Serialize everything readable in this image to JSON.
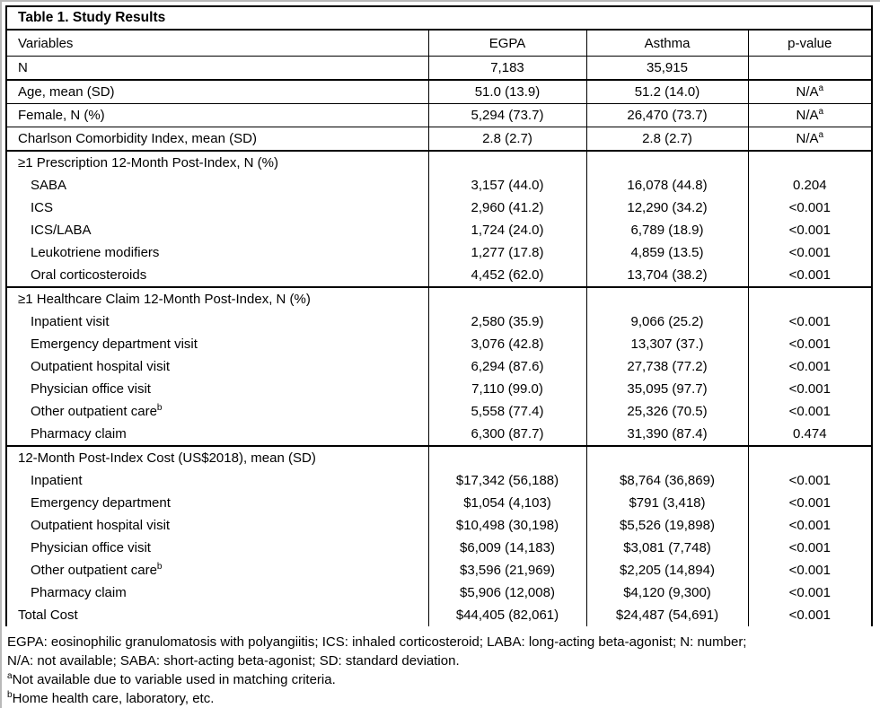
{
  "table": {
    "title": "Table 1. Study Results",
    "columns": {
      "variables": "Variables",
      "egpa": "EGPA",
      "asthma": "Asthma",
      "pvalue": "p-value"
    },
    "rows": [
      {
        "label": "N",
        "egpa": "7,183",
        "asthma": "35,915",
        "p": ""
      },
      {
        "label": "Age, mean (SD)",
        "egpa": "51.0 (13.9)",
        "asthma": "51.2 (14.0)",
        "p": "N/A^{a}"
      },
      {
        "label": "Female, N (%)",
        "egpa": "5,294 (73.7)",
        "asthma": "26,470 (73.7)",
        "p": "N/A^{a}"
      },
      {
        "label": "Charlson Comorbidity Index, mean (SD)",
        "egpa": "2.8 (2.7)",
        "asthma": "2.8 (2.7)",
        "p": "N/A^{a}"
      },
      {
        "label": "≥1 Prescription 12-Month Post-Index, N (%)",
        "egpa": "",
        "asthma": "",
        "p": ""
      },
      {
        "label": "SABA",
        "egpa": "3,157 (44.0)",
        "asthma": "16,078 (44.8)",
        "p": "0.204"
      },
      {
        "label": "ICS",
        "egpa": "2,960 (41.2)",
        "asthma": "12,290 (34.2)",
        "p": "<0.001"
      },
      {
        "label": "ICS/LABA",
        "egpa": "1,724 (24.0)",
        "asthma": "6,789 (18.9)",
        "p": "<0.001"
      },
      {
        "label": "Leukotriene modifiers",
        "egpa": "1,277 (17.8)",
        "asthma": "4,859 (13.5)",
        "p": "<0.001"
      },
      {
        "label": "Oral corticosteroids",
        "egpa": "4,452 (62.0)",
        "asthma": "13,704 (38.2)",
        "p": "<0.001"
      },
      {
        "label": "≥1 Healthcare Claim 12-Month Post-Index, N (%)",
        "egpa": "",
        "asthma": "",
        "p": ""
      },
      {
        "label": "Inpatient visit",
        "egpa": "2,580 (35.9)",
        "asthma": "9,066 (25.2)",
        "p": "<0.001"
      },
      {
        "label": "Emergency department visit",
        "egpa": "3,076 (42.8)",
        "asthma": "13,307 (37.)",
        "p": "<0.001"
      },
      {
        "label": "Outpatient hospital visit",
        "egpa": "6,294 (87.6)",
        "asthma": "27,738 (77.2)",
        "p": "<0.001"
      },
      {
        "label": "Physician office visit",
        "egpa": "7,110 (99.0)",
        "asthma": "35,095 (97.7)",
        "p": "<0.001"
      },
      {
        "label": "Other outpatient care^{b}",
        "egpa": "5,558 (77.4)",
        "asthma": "25,326 (70.5)",
        "p": "<0.001"
      },
      {
        "label": "Pharmacy claim",
        "egpa": "6,300 (87.7)",
        "asthma": "31,390 (87.4)",
        "p": "0.474"
      },
      {
        "label": "12-Month Post-Index Cost (US$2018), mean (SD)",
        "egpa": "",
        "asthma": "",
        "p": ""
      },
      {
        "label": "Inpatient",
        "egpa": "$17,342 (56,188)",
        "asthma": "$8,764 (36,869)",
        "p": "<0.001"
      },
      {
        "label": "Emergency department",
        "egpa": "$1,054 (4,103)",
        "asthma": "$791 (3,418)",
        "p": "<0.001"
      },
      {
        "label": "Outpatient hospital visit",
        "egpa": "$10,498 (30,198)",
        "asthma": "$5,526 (19,898)",
        "p": "<0.001"
      },
      {
        "label": "Physician office visit",
        "egpa": "$6,009 (14,183)",
        "asthma": "$3,081 (7,748)",
        "p": "<0.001"
      },
      {
        "label": "Other outpatient care^{b}",
        "egpa": "$3,596 (21,969)",
        "asthma": "$2,205 (14,894)",
        "p": "<0.001"
      },
      {
        "label": "Pharmacy claim",
        "egpa": "$5,906 (12,008)",
        "asthma": "$4,120 (9,300)",
        "p": "<0.001"
      },
      {
        "label": "Total Cost",
        "egpa": "$44,405 (82,061)",
        "asthma": "$24,487 (54,691)",
        "p": "<0.001"
      }
    ]
  },
  "footnotes": {
    "abbrev_line_1": "EGPA: eosinophilic granulomatosis with polyangiitis; ICS: inhaled corticosteroid; LABA: long-acting beta-agonist; N: number;",
    "abbrev_line_2": "N/A: not available; SABA: short-acting beta-agonist; SD: standard deviation.",
    "note_a": "^{a}Not available due to variable used in matching criteria.",
    "note_b": "^{b}Home health care, laboratory, etc."
  }
}
